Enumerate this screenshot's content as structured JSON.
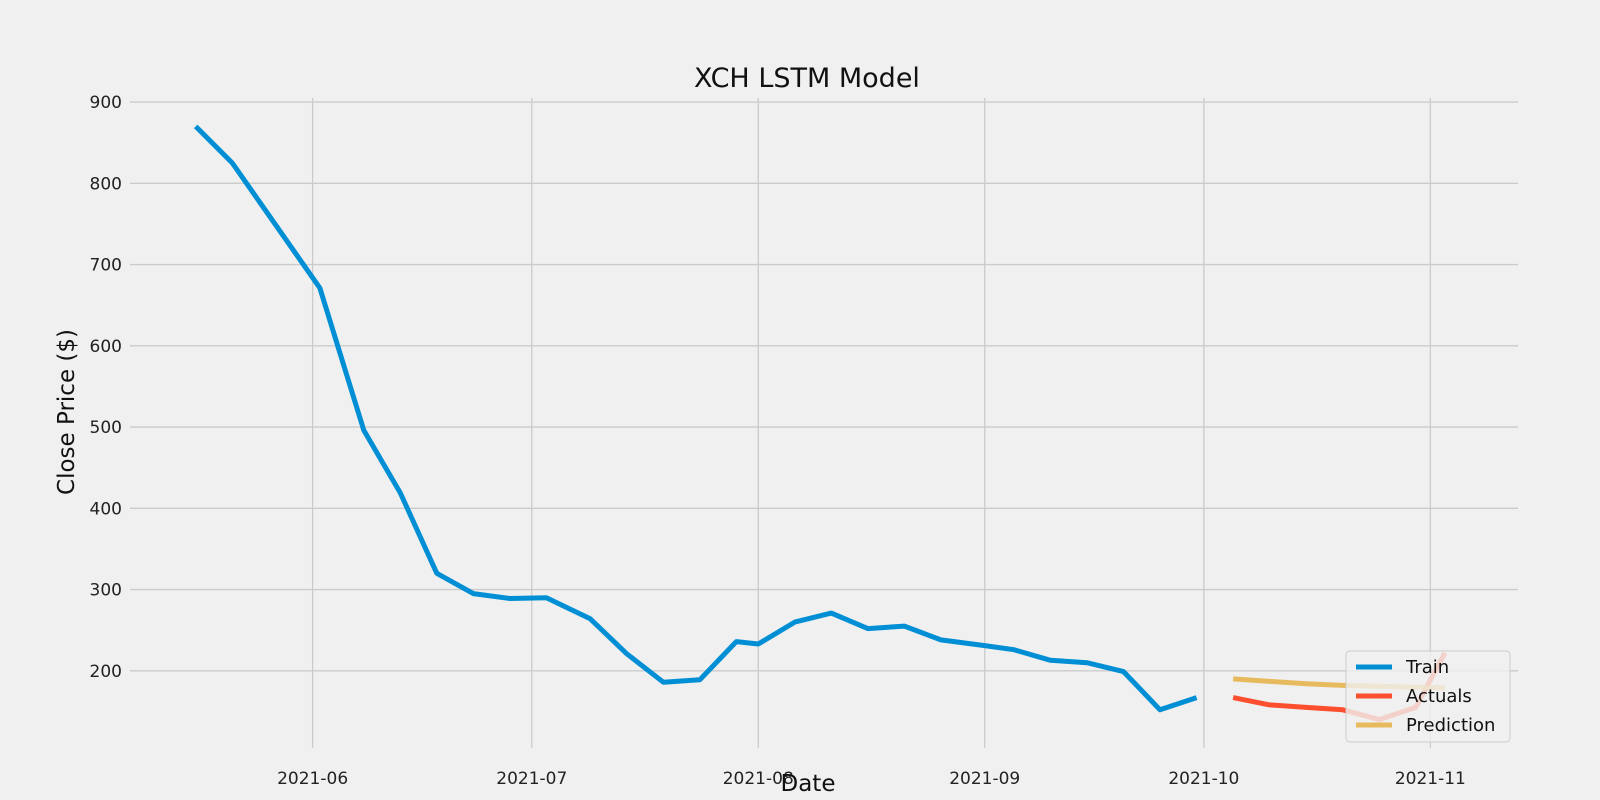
{
  "chart_data": {
    "type": "line",
    "title": "XCH LSTM Model",
    "xlabel": "Date",
    "ylabel": "Close Price ($)",
    "xlim": [
      "2021-05-07",
      "2021-11-13"
    ],
    "ylim": [
      105,
      905
    ],
    "x_ticks": [
      "2021-06-01",
      "2021-07-01",
      "2021-08-01",
      "2021-09-01",
      "2021-10-01",
      "2021-11-01"
    ],
    "x_tick_labels": [
      "2021-06",
      "2021-07",
      "2021-08",
      "2021-09",
      "2021-10",
      "2021-11"
    ],
    "y_ticks": [
      200,
      300,
      400,
      500,
      600,
      700,
      800,
      900
    ],
    "y_tick_labels": [
      "200",
      "300",
      "400",
      "500",
      "600",
      "700",
      "800",
      "900"
    ],
    "grid": true,
    "legend_position": "lower-right",
    "series": [
      {
        "name": "Train",
        "color": "#008fd5",
        "opacity": 1,
        "points": [
          [
            "2021-05-16",
            870
          ],
          [
            "2021-05-21",
            825
          ],
          [
            "2021-06-02",
            671
          ],
          [
            "2021-06-08",
            496
          ],
          [
            "2021-06-13",
            419
          ],
          [
            "2021-06-18",
            320
          ],
          [
            "2021-06-23",
            295
          ],
          [
            "2021-06-28",
            289
          ],
          [
            "2021-07-03",
            290
          ],
          [
            "2021-07-09",
            264
          ],
          [
            "2021-07-14",
            221
          ],
          [
            "2021-07-19",
            186
          ],
          [
            "2021-07-24",
            189
          ],
          [
            "2021-07-29",
            236
          ],
          [
            "2021-08-01",
            233
          ],
          [
            "2021-08-06",
            260
          ],
          [
            "2021-08-11",
            271
          ],
          [
            "2021-08-16",
            252
          ],
          [
            "2021-08-21",
            255
          ],
          [
            "2021-08-26",
            238
          ],
          [
            "2021-09-01",
            231
          ],
          [
            "2021-09-05",
            226
          ],
          [
            "2021-09-10",
            213
          ],
          [
            "2021-09-15",
            210
          ],
          [
            "2021-09-20",
            199
          ],
          [
            "2021-09-25",
            152
          ],
          [
            "2021-09-30",
            167
          ]
        ]
      },
      {
        "name": "Actuals",
        "color": "#fc4f30",
        "opacity": 1,
        "points": [
          [
            "2021-10-05",
            167
          ],
          [
            "2021-10-10",
            158
          ],
          [
            "2021-10-15",
            155
          ],
          [
            "2021-10-20",
            152
          ],
          [
            "2021-10-25",
            140
          ],
          [
            "2021-10-30",
            155
          ],
          [
            "2021-11-03",
            222
          ]
        ]
      },
      {
        "name": "Prediction",
        "color": "#e5ae38",
        "opacity": 0.8,
        "points": [
          [
            "2021-10-05",
            190
          ],
          [
            "2021-10-10",
            187
          ],
          [
            "2021-10-15",
            184
          ],
          [
            "2021-10-20",
            182
          ],
          [
            "2021-10-25",
            181
          ],
          [
            "2021-10-30",
            180
          ],
          [
            "2021-11-03",
            179
          ]
        ]
      }
    ]
  },
  "style": {
    "background": "#f0f0f0",
    "grid_color": "#cbcbcb",
    "legend_background": "#f0f0f0",
    "legend_border": "#cccccc"
  }
}
